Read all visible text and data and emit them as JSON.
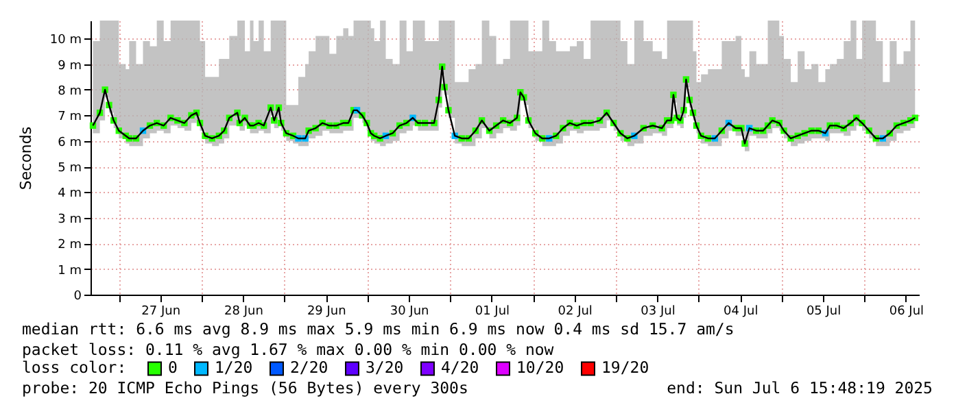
{
  "chart_data": {
    "type": "line",
    "ylabel": "Seconds",
    "legend_title": "loss color:",
    "legend": "bottom",
    "grid": true,
    "marker": "square",
    "xlim": [
      "2025-06-26T15:48",
      "2025-07-06T15:48"
    ],
    "xticks": [
      {
        "value": "2025-06-27T00:00",
        "label": null
      },
      {
        "value": "2025-06-27T12:00",
        "label": "27 Jun"
      },
      {
        "value": "2025-06-28T00:00",
        "label": null
      },
      {
        "value": "2025-06-28T12:00",
        "label": "28 Jun"
      },
      {
        "value": "2025-06-29T00:00",
        "label": null
      },
      {
        "value": "2025-06-29T12:00",
        "label": "29 Jun"
      },
      {
        "value": "2025-06-30T00:00",
        "label": null
      },
      {
        "value": "2025-06-30T12:00",
        "label": "30 Jun"
      },
      {
        "value": "2025-07-01T00:00",
        "label": null
      },
      {
        "value": "2025-07-01T12:00",
        "label": "01 Jul"
      },
      {
        "value": "2025-07-02T00:00",
        "label": null
      },
      {
        "value": "2025-07-02T12:00",
        "label": "02 Jul"
      },
      {
        "value": "2025-07-03T00:00",
        "label": null
      },
      {
        "value": "2025-07-03T12:00",
        "label": "03 Jul"
      },
      {
        "value": "2025-07-04T00:00",
        "label": null
      },
      {
        "value": "2025-07-04T12:00",
        "label": "04 Jul"
      },
      {
        "value": "2025-07-05T00:00",
        "label": null
      },
      {
        "value": "2025-07-05T12:00",
        "label": "05 Jul"
      },
      {
        "value": "2025-07-06T00:00",
        "label": null
      },
      {
        "value": "2025-07-06T12:00",
        "label": "06 Jul"
      }
    ],
    "ylim": [
      0,
      10.7
    ],
    "yticks": [
      0,
      {
        "value": 1,
        "label": "1 m"
      },
      {
        "value": 2,
        "label": "2 m"
      },
      {
        "value": 3,
        "label": "3 m"
      },
      {
        "value": 4,
        "label": "4 m"
      },
      {
        "value": 5,
        "label": "5 m"
      },
      {
        "value": 6,
        "label": "6 m"
      },
      {
        "value": 7,
        "label": "7 m"
      },
      {
        "value": 8,
        "label": "8 m"
      },
      {
        "value": 9,
        "label": "9 m"
      },
      {
        "value": 10,
        "label": "10 m"
      }
    ],
    "annotations": [
      "median rtt:  6.6 ms avg  8.9 ms max  5.9 ms min  6.9 ms now  0.4 ms sd  15.7   am/s",
      "packet loss: 0.11 % avg  1.67 % max  0.00 % min  0.00 % now",
      "probe:       20 ICMP Echo Pings (56 Bytes) every 300s",
      "end: Sun Jul  6 15:48:19 2025"
    ],
    "series": [
      {
        "color": "#000000",
        "marker": "none",
        "x": [
          "2025-06-26T16:30",
          "2025-06-26T18:30",
          "2025-06-26T20:00",
          "2025-06-26T21:10",
          "2025-06-26T22:30",
          "2025-06-27T00:00",
          "2025-06-27T02:00",
          "2025-06-27T03:00",
          "2025-06-27T05:00",
          "2025-06-27T07:00",
          "2025-06-27T09:00",
          "2025-06-27T11:00",
          "2025-06-27T13:00",
          "2025-06-27T15:00",
          "2025-06-27T17:00",
          "2025-06-27T19:00",
          "2025-06-27T21:00",
          "2025-06-27T22:30",
          "2025-06-27T23:30",
          "2025-06-28T01:00",
          "2025-06-28T03:00",
          "2025-06-28T05:00",
          "2025-06-28T06:30",
          "2025-06-28T08:00",
          "2025-06-28T10:20",
          "2025-06-28T11:00",
          "2025-06-28T12:30",
          "2025-06-28T14:00",
          "2025-06-28T15:00",
          "2025-06-28T16:30",
          "2025-06-28T18:00",
          "2025-06-28T20:00",
          "2025-06-28T21:00",
          "2025-06-28T22:20",
          "2025-06-28T23:00",
          "2025-06-29T00:30",
          "2025-06-29T02:30",
          "2025-06-29T04:00",
          "2025-06-29T06:00",
          "2025-06-29T07:00",
          "2025-06-29T09:00",
          "2025-06-29T11:00",
          "2025-06-29T13:00",
          "2025-06-29T15:00",
          "2025-06-29T17:00",
          "2025-06-29T18:30",
          "2025-06-29T20:00",
          "2025-06-29T21:00",
          "2025-06-29T22:30",
          "2025-06-29T23:50",
          "2025-06-30T01:00",
          "2025-06-30T02:00",
          "2025-06-30T03:40",
          "2025-06-30T05:20",
          "2025-06-30T07:20",
          "2025-06-30T09:20",
          "2025-06-30T11:20",
          "2025-06-30T13:10",
          "2025-06-30T14:40",
          "2025-06-30T16:40",
          "2025-06-30T19:20",
          "2025-06-30T20:40",
          "2025-06-30T21:40",
          "2025-06-30T22:20",
          "2025-06-30T23:30",
          "2025-07-01T01:20",
          "2025-07-01T03:20",
          "2025-07-01T05:20",
          "2025-07-01T07:20",
          "2025-07-01T09:10",
          "2025-07-01T11:20",
          "2025-07-01T13:20",
          "2025-07-01T15:20",
          "2025-07-01T17:20",
          "2025-07-01T19:20",
          "2025-07-01T20:20",
          "2025-07-01T21:20",
          "2025-07-01T22:40",
          "2025-07-02T00:40",
          "2025-07-02T02:40",
          "2025-07-02T04:40",
          "2025-07-02T06:40",
          "2025-07-02T08:40",
          "2025-07-02T10:40",
          "2025-07-02T12:40",
          "2025-07-02T14:40",
          "2025-07-02T16:40",
          "2025-07-02T19:20",
          "2025-07-02T21:20",
          "2025-07-02T23:20",
          "2025-07-03T01:20",
          "2025-07-03T03:20",
          "2025-07-03T05:20",
          "2025-07-03T08:00",
          "2025-07-03T10:40",
          "2025-07-03T13:20",
          "2025-07-03T14:50",
          "2025-07-03T16:00",
          "2025-07-03T16:40",
          "2025-07-03T17:40",
          "2025-07-03T18:40",
          "2025-07-03T19:40",
          "2025-07-03T20:20",
          "2025-07-03T21:20",
          "2025-07-03T22:20",
          "2025-07-03T23:20",
          "2025-07-04T00:40",
          "2025-07-04T02:40",
          "2025-07-04T04:40",
          "2025-07-04T06:40",
          "2025-07-04T08:40",
          "2025-07-04T10:40",
          "2025-07-04T12:20",
          "2025-07-04T13:20",
          "2025-07-04T14:40",
          "2025-07-04T16:40",
          "2025-07-04T18:40",
          "2025-07-04T20:00",
          "2025-07-04T21:20",
          "2025-07-04T23:20",
          "2025-07-05T00:40",
          "2025-07-05T02:40",
          "2025-07-05T04:40",
          "2025-07-05T06:40",
          "2025-07-05T08:40",
          "2025-07-05T10:40",
          "2025-07-05T12:40",
          "2025-07-05T14:00",
          "2025-07-05T16:00",
          "2025-07-05T18:00",
          "2025-07-05T20:00",
          "2025-07-05T21:40",
          "2025-07-05T23:20",
          "2025-07-06T01:20",
          "2025-07-06T03:20",
          "2025-07-06T05:20",
          "2025-07-06T07:20",
          "2025-07-06T09:20",
          "2025-07-06T11:20",
          "2025-07-06T13:20",
          "2025-07-06T14:40"
        ],
        "values": [
          6.6,
          7.1,
          8.0,
          7.4,
          6.8,
          6.4,
          6.2,
          6.1,
          6.1,
          6.4,
          6.6,
          6.7,
          6.6,
          6.9,
          6.8,
          6.7,
          7.0,
          7.1,
          6.7,
          6.2,
          6.1,
          6.2,
          6.4,
          6.9,
          7.1,
          6.7,
          6.9,
          6.6,
          6.6,
          6.7,
          6.6,
          7.3,
          6.8,
          7.3,
          6.7,
          6.3,
          6.2,
          6.1,
          6.1,
          6.4,
          6.5,
          6.7,
          6.6,
          6.6,
          6.7,
          6.7,
          7.2,
          7.2,
          7.0,
          6.7,
          6.3,
          6.2,
          6.1,
          6.2,
          6.3,
          6.6,
          6.7,
          6.9,
          6.7,
          6.7,
          6.7,
          7.6,
          8.9,
          8.1,
          7.2,
          6.2,
          6.1,
          6.1,
          6.4,
          6.8,
          6.4,
          6.6,
          6.8,
          6.7,
          6.9,
          7.9,
          7.7,
          6.8,
          6.3,
          6.1,
          6.1,
          6.2,
          6.5,
          6.7,
          6.6,
          6.7,
          6.7,
          6.8,
          7.1,
          6.7,
          6.3,
          6.1,
          6.2,
          6.5,
          6.6,
          6.5,
          6.8,
          6.8,
          7.8,
          6.9,
          6.8,
          7.2,
          8.4,
          7.6,
          7.1,
          6.6,
          6.2,
          6.1,
          6.1,
          6.4,
          6.7,
          6.5,
          6.5,
          5.9,
          6.5,
          6.4,
          6.4,
          6.6,
          6.8,
          6.7,
          6.4,
          6.1,
          6.2,
          6.3,
          6.4,
          6.4,
          6.3,
          6.6,
          6.6,
          6.5,
          6.7,
          6.9,
          6.7,
          6.4,
          6.1,
          6.1,
          6.3,
          6.6,
          6.7,
          6.8,
          6.9
        ],
        "lower": [
          6.3,
          6.8,
          7.7,
          7.1,
          6.5,
          6.1,
          5.9,
          5.8,
          5.8,
          6.1,
          6.3,
          6.4,
          6.3,
          6.6,
          6.5,
          6.4,
          6.7,
          6.8,
          6.4,
          5.9,
          5.8,
          5.9,
          6.1,
          6.6,
          6.8,
          6.4,
          6.6,
          6.3,
          6.3,
          6.4,
          6.3,
          7.0,
          6.5,
          7.0,
          6.4,
          6.0,
          5.9,
          5.8,
          5.8,
          6.1,
          6.2,
          6.4,
          6.3,
          6.3,
          6.4,
          6.4,
          6.9,
          6.9,
          6.7,
          6.4,
          6.0,
          5.9,
          5.8,
          5.9,
          6.0,
          6.3,
          6.4,
          6.6,
          6.4,
          6.4,
          6.4,
          7.3,
          8.6,
          7.8,
          6.9,
          5.9,
          5.8,
          5.8,
          6.1,
          6.5,
          6.1,
          6.3,
          6.5,
          6.4,
          6.6,
          7.6,
          7.4,
          6.5,
          6.0,
          5.8,
          5.8,
          5.9,
          6.2,
          6.4,
          6.3,
          6.4,
          6.4,
          6.5,
          6.8,
          6.4,
          6.0,
          5.8,
          5.9,
          6.2,
          6.3,
          6.2,
          6.5,
          6.5,
          7.5,
          6.6,
          6.5,
          6.9,
          8.1,
          7.3,
          6.8,
          6.3,
          5.9,
          5.8,
          5.8,
          6.1,
          6.4,
          6.2,
          6.2,
          5.6,
          6.2,
          6.1,
          6.1,
          6.3,
          6.5,
          6.4,
          6.1,
          5.8,
          5.9,
          6.0,
          6.1,
          6.1,
          6.0,
          6.3,
          6.3,
          6.2,
          6.4,
          6.6,
          6.4,
          6.1,
          5.8,
          5.8,
          6.0,
          6.3,
          6.4,
          6.5,
          6.6
        ],
        "upper": [
          9.9,
          10.7,
          10.7,
          10.7,
          10.7,
          9.0,
          8.8,
          9.9,
          9.0,
          9.9,
          9.7,
          10.7,
          9.9,
          10.7,
          10.7,
          10.7,
          10.7,
          10.7,
          9.9,
          8.5,
          8.5,
          9.2,
          9.2,
          10.1,
          10.7,
          10.7,
          9.5,
          10.7,
          9.9,
          10.7,
          9.5,
          10.7,
          10.7,
          10.7,
          10.7,
          7.4,
          7.4,
          8.5,
          9.0,
          9.5,
          10.1,
          10.1,
          9.4,
          10.1,
          10.4,
          10.1,
          10.7,
          10.7,
          10.7,
          10.7,
          10.4,
          9.9,
          10.7,
          9.2,
          9.0,
          10.7,
          9.5,
          10.7,
          10.7,
          9.9,
          9.9,
          10.7,
          10.7,
          10.7,
          10.7,
          8.3,
          8.3,
          8.8,
          9.0,
          10.7,
          10.1,
          9.0,
          9.2,
          10.7,
          10.7,
          10.7,
          10.7,
          9.5,
          9.5,
          10.7,
          9.9,
          9.5,
          9.5,
          9.7,
          9.9,
          9.2,
          10.7,
          10.7,
          10.7,
          10.7,
          9.9,
          9.0,
          10.7,
          9.9,
          9.5,
          9.2,
          10.7,
          10.7,
          10.7,
          10.7,
          10.7,
          10.7,
          10.7,
          10.7,
          9.5,
          8.3,
          8.6,
          8.8,
          8.8,
          9.9,
          9.9,
          10.1,
          8.8,
          8.5,
          9.5,
          9.0,
          9.0,
          10.7,
          10.7,
          10.1,
          9.2,
          8.3,
          9.5,
          8.8,
          9.0,
          8.3,
          8.8,
          9.0,
          9.2,
          9.9,
          10.7,
          9.2,
          10.7,
          10.7,
          9.9,
          8.3,
          9.9,
          9.0,
          9.5,
          10.7,
          10.7
        ]
      },
      {
        "name": "0",
        "type": "scatter",
        "color": "#26ff00",
        "x": [
          "2025-06-26T16:30",
          "2025-06-26T18:30",
          "2025-06-26T20:00",
          "2025-06-26T21:10",
          "2025-06-26T22:30",
          "2025-06-27T00:00",
          "2025-06-27T02:00",
          "2025-06-27T03:00",
          "2025-06-27T05:00",
          "2025-06-27T09:00",
          "2025-06-27T11:00",
          "2025-06-27T13:00",
          "2025-06-27T15:00",
          "2025-06-27T17:00",
          "2025-06-27T19:00",
          "2025-06-27T21:00",
          "2025-06-27T22:30",
          "2025-06-27T23:30",
          "2025-06-28T01:00",
          "2025-06-28T03:00",
          "2025-06-28T05:00",
          "2025-06-28T06:30",
          "2025-06-28T08:00",
          "2025-06-28T10:20",
          "2025-06-28T11:00",
          "2025-06-28T12:30",
          "2025-06-28T14:00",
          "2025-06-28T15:00",
          "2025-06-28T16:30",
          "2025-06-28T18:00",
          "2025-06-28T20:00",
          "2025-06-28T21:00",
          "2025-06-28T22:20",
          "2025-06-28T23:00",
          "2025-06-29T00:30",
          "2025-06-29T02:30",
          "2025-06-29T07:00",
          "2025-06-29T09:00",
          "2025-06-29T11:00",
          "2025-06-29T13:00",
          "2025-06-29T15:00",
          "2025-06-29T17:00",
          "2025-06-29T18:30",
          "2025-06-29T20:00",
          "2025-06-29T22:30",
          "2025-06-29T23:50",
          "2025-06-30T01:00",
          "2025-06-30T02:00",
          "2025-06-30T03:40",
          "2025-06-30T07:20",
          "2025-06-30T09:20",
          "2025-06-30T11:20",
          "2025-06-30T14:40",
          "2025-06-30T16:40",
          "2025-06-30T19:20",
          "2025-06-30T20:40",
          "2025-06-30T21:40",
          "2025-06-30T22:20",
          "2025-06-30T23:30",
          "2025-07-01T03:20",
          "2025-07-01T05:20",
          "2025-07-01T07:20",
          "2025-07-01T09:10",
          "2025-07-01T11:20",
          "2025-07-01T13:20",
          "2025-07-01T15:20",
          "2025-07-01T17:20",
          "2025-07-01T19:20",
          "2025-07-01T20:20",
          "2025-07-01T21:20",
          "2025-07-01T22:40",
          "2025-07-02T00:40",
          "2025-07-02T02:40",
          "2025-07-02T06:40",
          "2025-07-02T08:40",
          "2025-07-02T10:40",
          "2025-07-02T12:40",
          "2025-07-02T14:40",
          "2025-07-02T16:40",
          "2025-07-02T19:20",
          "2025-07-02T21:20",
          "2025-07-02T23:20",
          "2025-07-03T01:20",
          "2025-07-03T03:20",
          "2025-07-03T08:00",
          "2025-07-03T10:40",
          "2025-07-03T13:20",
          "2025-07-03T14:50",
          "2025-07-03T16:00",
          "2025-07-03T16:40",
          "2025-07-03T17:40",
          "2025-07-03T18:40",
          "2025-07-03T19:40",
          "2025-07-03T20:20",
          "2025-07-03T21:20",
          "2025-07-03T22:20",
          "2025-07-03T23:20",
          "2025-07-04T00:40",
          "2025-07-04T02:40",
          "2025-07-04T06:40",
          "2025-07-04T10:40",
          "2025-07-04T12:20",
          "2025-07-04T13:20",
          "2025-07-04T16:40",
          "2025-07-04T18:40",
          "2025-07-04T20:00",
          "2025-07-04T21:20",
          "2025-07-04T23:20",
          "2025-07-05T00:40",
          "2025-07-05T02:40",
          "2025-07-05T04:40",
          "2025-07-05T06:40",
          "2025-07-05T08:40",
          "2025-07-05T10:40",
          "2025-07-05T14:00",
          "2025-07-05T16:00",
          "2025-07-05T18:00",
          "2025-07-05T20:00",
          "2025-07-05T21:40",
          "2025-07-05T23:20",
          "2025-07-06T01:20",
          "2025-07-06T03:20",
          "2025-07-06T07:20",
          "2025-07-06T09:20",
          "2025-07-06T11:20",
          "2025-07-06T13:20",
          "2025-07-06T14:40"
        ],
        "values": [
          6.6,
          7.1,
          8.0,
          7.4,
          6.8,
          6.4,
          6.2,
          6.1,
          6.1,
          6.6,
          6.7,
          6.6,
          6.9,
          6.8,
          6.7,
          7.0,
          7.1,
          6.7,
          6.2,
          6.1,
          6.2,
          6.4,
          6.9,
          7.1,
          6.7,
          6.9,
          6.6,
          6.6,
          6.7,
          6.6,
          7.3,
          6.8,
          7.3,
          6.7,
          6.3,
          6.2,
          6.4,
          6.5,
          6.7,
          6.6,
          6.6,
          6.7,
          6.7,
          7.2,
          7.0,
          6.7,
          6.3,
          6.2,
          6.1,
          6.3,
          6.6,
          6.7,
          6.7,
          6.7,
          6.7,
          7.6,
          8.9,
          8.1,
          7.2,
          6.1,
          6.1,
          6.4,
          6.8,
          6.4,
          6.6,
          6.8,
          6.7,
          6.9,
          7.9,
          7.7,
          6.8,
          6.3,
          6.1,
          6.2,
          6.5,
          6.7,
          6.6,
          6.7,
          6.7,
          6.8,
          7.1,
          6.7,
          6.3,
          6.1,
          6.5,
          6.6,
          6.5,
          6.8,
          6.8,
          7.8,
          6.9,
          6.8,
          7.2,
          8.4,
          7.6,
          7.1,
          6.6,
          6.2,
          6.1,
          6.4,
          6.5,
          6.5,
          5.9,
          6.4,
          6.4,
          6.6,
          6.8,
          6.7,
          6.4,
          6.1,
          6.2,
          6.3,
          6.4,
          6.4,
          6.6,
          6.6,
          6.5,
          6.7,
          6.9,
          6.7,
          6.4,
          6.1,
          6.3,
          6.6,
          6.7,
          6.8,
          6.9
        ]
      },
      {
        "name": "1/20",
        "type": "scatter",
        "color": "#00b8ff",
        "x": [
          "2025-06-27T07:00",
          "2025-06-29T04:00",
          "2025-06-29T06:00",
          "2025-06-29T21:00",
          "2025-06-30T05:20",
          "2025-06-30T13:10",
          "2025-07-01T01:20",
          "2025-07-02T04:40",
          "2025-07-03T05:20",
          "2025-07-04T04:40",
          "2025-07-04T08:40",
          "2025-07-04T14:40",
          "2025-07-05T12:40",
          "2025-07-06T05:20"
        ],
        "values": [
          6.4,
          6.1,
          6.1,
          7.2,
          6.2,
          6.9,
          6.2,
          6.1,
          6.2,
          6.1,
          6.7,
          6.5,
          6.3,
          6.1
        ]
      },
      {
        "name": "2/20",
        "type": "scatter",
        "color": "#0059ff"
      },
      {
        "name": "3/20",
        "type": "scatter",
        "color": "#5e00ff"
      },
      {
        "name": "4/20",
        "type": "scatter",
        "color": "#7e00ff"
      },
      {
        "name": "10/20",
        "type": "scatter",
        "color": "#dd00ff"
      },
      {
        "name": "19/20",
        "type": "scatter",
        "color": "#ff0000"
      }
    ]
  }
}
